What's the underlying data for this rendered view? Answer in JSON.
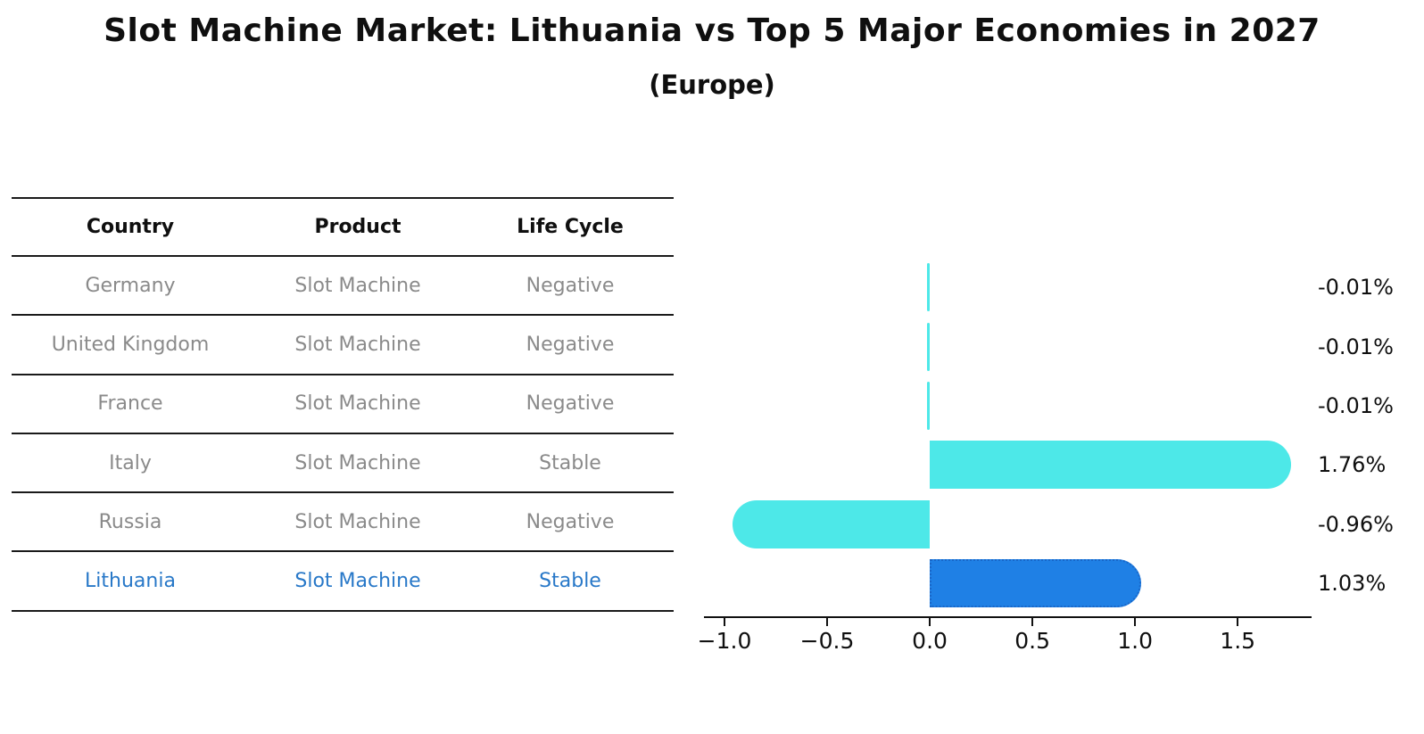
{
  "title": "Slot Machine Market: Lithuania vs Top 5 Major Economies in 2027",
  "subtitle": "(Europe)",
  "table": {
    "headers": [
      "Country",
      "Product",
      "Life Cycle"
    ],
    "rows": [
      {
        "country": "Germany",
        "product": "Slot Machine",
        "life_cycle": "Negative",
        "highlight": false
      },
      {
        "country": "United Kingdom",
        "product": "Slot Machine",
        "life_cycle": "Negative",
        "highlight": false
      },
      {
        "country": "France",
        "product": "Slot Machine",
        "life_cycle": "Negative",
        "highlight": false
      },
      {
        "country": "Italy",
        "product": "Slot Machine",
        "life_cycle": "Stable",
        "highlight": false
      },
      {
        "country": "Russia",
        "product": "Slot Machine",
        "life_cycle": "Negative",
        "highlight": false
      },
      {
        "country": "Lithuania",
        "product": "Slot Machine",
        "life_cycle": "Stable",
        "highlight": true
      }
    ]
  },
  "chart_data": {
    "type": "bar",
    "orientation": "horizontal",
    "categories": [
      "Germany",
      "United Kingdom",
      "France",
      "Italy",
      "Russia",
      "Lithuania"
    ],
    "values": [
      -0.01,
      -0.01,
      -0.01,
      1.76,
      -0.96,
      1.03
    ],
    "value_labels": [
      "-0.01%",
      "-0.01%",
      "-0.01%",
      "1.76%",
      "-0.96%",
      "1.03%"
    ],
    "xticks": [
      -1.0,
      -0.5,
      0.0,
      0.5,
      1.0,
      1.5
    ],
    "xtick_labels": [
      "−1.0",
      "−0.5",
      "0.0",
      "0.5",
      "1.0",
      "1.5"
    ],
    "xlim": [
      -1.1,
      1.86
    ],
    "grid": false,
    "legend": false,
    "bar_color": "#4DE8E8",
    "highlight_index": 5,
    "highlight_bar_color": "#1F80E5",
    "highlight_border_color": "#1866C8"
  },
  "colors": {
    "text": "#0f0f0f",
    "muted": "#8a8a8a",
    "highlight_text": "#2878C8",
    "line": "#1a1a1a",
    "background": "#ffffff"
  }
}
